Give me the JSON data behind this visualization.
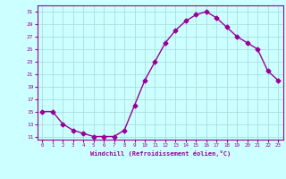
{
  "x": [
    0,
    1,
    2,
    3,
    4,
    5,
    6,
    7,
    8,
    9,
    10,
    11,
    12,
    13,
    14,
    15,
    16,
    17,
    18,
    19,
    20,
    21,
    22,
    23
  ],
  "y": [
    15,
    15,
    13,
    12,
    11.5,
    11,
    11,
    11,
    12,
    16,
    20,
    23,
    26,
    28,
    29.5,
    30.5,
    31,
    30,
    28.5,
    27,
    26,
    25,
    21.5,
    20
  ],
  "line_color": "#990099",
  "marker": "D",
  "marker_size": 2.5,
  "bg_color": "#ccffff",
  "grid_color": "#aadddd",
  "xlabel": "Windchill (Refroidissement éolien,°C)",
  "xlabel_color": "#990099",
  "ylabel_ticks": [
    11,
    13,
    15,
    17,
    19,
    21,
    23,
    25,
    27,
    29,
    31
  ],
  "xlim": [
    -0.5,
    23.5
  ],
  "ylim": [
    10.5,
    32
  ],
  "tick_color": "#990099"
}
